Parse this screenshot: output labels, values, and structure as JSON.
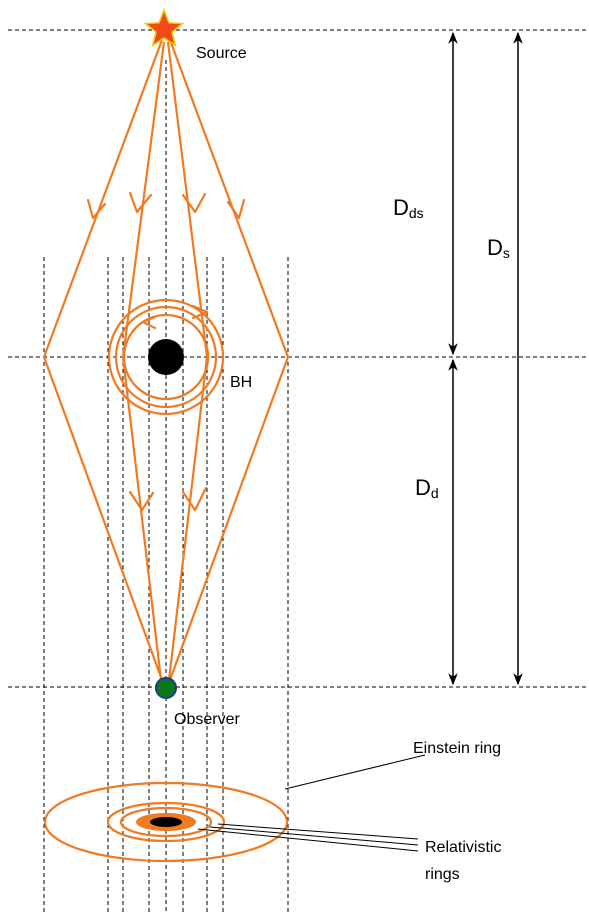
{
  "labels": {
    "source": "Source",
    "bh": "BH",
    "observer": "Observer",
    "einstein_ring": "Einstein ring",
    "relativistic_rings": [
      "Relativistic",
      "rings"
    ]
  },
  "distances": {
    "dds": {
      "main": "D",
      "sub": "ds"
    },
    "ds": {
      "main": "D",
      "sub": "s"
    },
    "dd": {
      "main": "D",
      "sub": "d"
    }
  },
  "colors": {
    "rays": "#f07a22",
    "source_fill": "#f04a1a",
    "source_stroke": "#e8d000",
    "black_hole": "#000000",
    "observer_fill": "#0a7a18",
    "observer_stroke": "#1b3a8a",
    "ring_fill": "#f07a22",
    "dashed_lines": "#000000"
  },
  "icons": {
    "source": "star-icon",
    "observer": "dot-icon",
    "black_hole": "disc-icon"
  }
}
